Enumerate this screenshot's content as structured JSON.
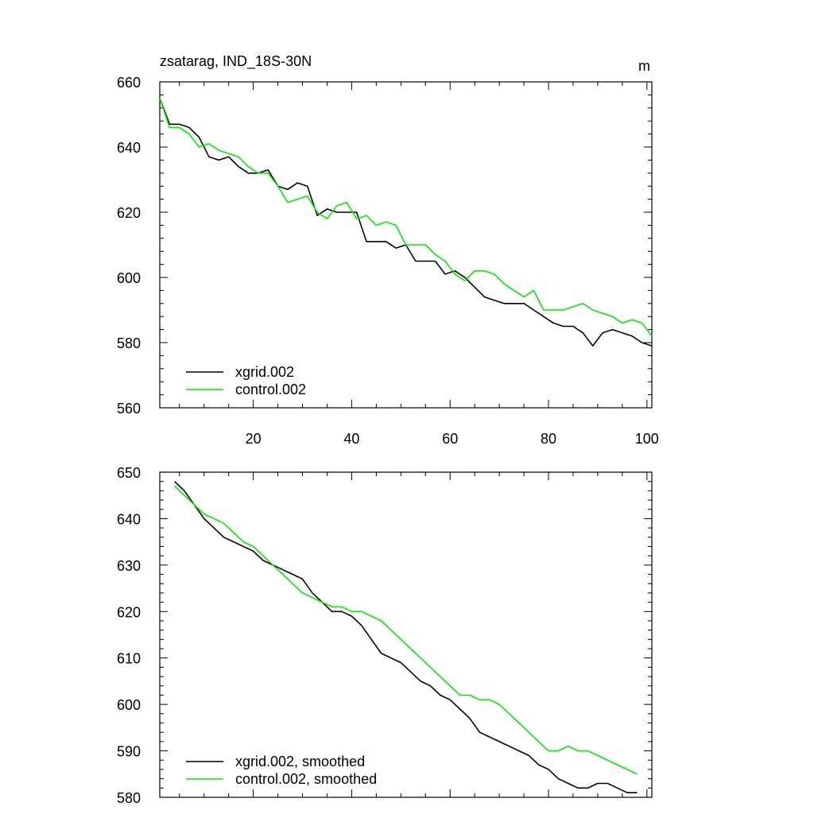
{
  "colors": {
    "xgrid": "#000000",
    "control": "#00ee00",
    "axis": "#000000",
    "background": "#ffffff"
  },
  "chart_data": [
    {
      "type": "line",
      "title": "zsatarag, IND_18S-30N",
      "units": "m",
      "xlim": [
        1,
        101
      ],
      "ylim": [
        560,
        660
      ],
      "x_ticks": [
        20,
        40,
        60,
        80,
        100
      ],
      "y_ticks": [
        560,
        580,
        600,
        620,
        640,
        660
      ],
      "x_tick_labels": [
        "20",
        "40",
        "60",
        "80",
        "100"
      ],
      "y_tick_labels": [
        "560",
        "580",
        "600",
        "620",
        "640",
        "660"
      ],
      "legend_position": "bottom-left",
      "series": [
        {
          "name": "xgrid.002",
          "color": "#000000",
          "x": [
            1,
            3,
            5,
            7,
            9,
            11,
            13,
            15,
            17,
            19,
            21,
            23,
            25,
            27,
            29,
            31,
            33,
            35,
            37,
            39,
            41,
            43,
            45,
            47,
            49,
            51,
            53,
            55,
            57,
            59,
            61,
            63,
            65,
            67,
            69,
            71,
            73,
            75,
            77,
            79,
            81,
            83,
            85,
            87,
            89,
            91,
            93,
            95,
            97,
            99,
            101
          ],
          "values": [
            655,
            647,
            647,
            646,
            643,
            637,
            636,
            637,
            634,
            632,
            632,
            633,
            628,
            627,
            629,
            628,
            619,
            621,
            620,
            620,
            620,
            611,
            611,
            611,
            609,
            610,
            605,
            605,
            605,
            601,
            602,
            600,
            597,
            594,
            593,
            592,
            592,
            592,
            590,
            588,
            586,
            585,
            585,
            583,
            579,
            583,
            584,
            583,
            582,
            580,
            579
          ]
        },
        {
          "name": "control.002",
          "color": "#00ee00",
          "x": [
            1,
            3,
            5,
            7,
            9,
            11,
            13,
            15,
            17,
            19,
            21,
            23,
            25,
            27,
            29,
            31,
            33,
            35,
            37,
            39,
            41,
            43,
            45,
            47,
            49,
            51,
            53,
            55,
            57,
            59,
            61,
            63,
            65,
            67,
            69,
            71,
            73,
            75,
            77,
            79,
            81,
            83,
            85,
            87,
            89,
            91,
            93,
            95,
            97,
            99,
            101
          ],
          "values": [
            655,
            646,
            646,
            644,
            640,
            641,
            639,
            638,
            637,
            634,
            632,
            632,
            628,
            623,
            624,
            625,
            620,
            618,
            622,
            623,
            618,
            619,
            616,
            617,
            616,
            610,
            610,
            610,
            607,
            605,
            601,
            599,
            602,
            602,
            601,
            598,
            596,
            594,
            596,
            590,
            590,
            590,
            591,
            592,
            590,
            589,
            588,
            586,
            587,
            586,
            582
          ]
        }
      ]
    },
    {
      "type": "line",
      "title": "",
      "xlim": [
        1,
        101
      ],
      "ylim": [
        580,
        650
      ],
      "x_ticks": [
        20,
        40,
        60,
        80,
        100
      ],
      "y_ticks": [
        580,
        590,
        600,
        610,
        620,
        630,
        640,
        650
      ],
      "y_tick_labels": [
        "580",
        "590",
        "600",
        "610",
        "620",
        "630",
        "640",
        "650"
      ],
      "legend_position": "bottom-left",
      "series": [
        {
          "name": "xgrid.002, smoothed",
          "color": "#000000",
          "x": [
            4,
            6,
            8,
            10,
            12,
            14,
            16,
            18,
            20,
            22,
            24,
            26,
            28,
            30,
            32,
            34,
            36,
            38,
            40,
            42,
            44,
            46,
            48,
            50,
            52,
            54,
            56,
            58,
            60,
            62,
            64,
            66,
            68,
            70,
            72,
            74,
            76,
            78,
            80,
            82,
            84,
            86,
            88,
            90,
            92,
            94,
            96,
            98
          ],
          "values": [
            648,
            646,
            643,
            640,
            638,
            636,
            635,
            634,
            633,
            631,
            630,
            629,
            628,
            627,
            624,
            622,
            620,
            620,
            619,
            617,
            614,
            611,
            610,
            609,
            607,
            605,
            604,
            602,
            601,
            599,
            597,
            594,
            593,
            592,
            591,
            590,
            589,
            587,
            586,
            584,
            583,
            582,
            582,
            583,
            583,
            582,
            581,
            581
          ]
        },
        {
          "name": "control.002, smoothed",
          "color": "#00ee00",
          "x": [
            4,
            6,
            8,
            10,
            12,
            14,
            16,
            18,
            20,
            22,
            24,
            26,
            28,
            30,
            32,
            34,
            36,
            38,
            40,
            42,
            44,
            46,
            48,
            50,
            52,
            54,
            56,
            58,
            60,
            62,
            64,
            66,
            68,
            70,
            72,
            74,
            76,
            78,
            80,
            82,
            84,
            86,
            88,
            90,
            92,
            94,
            96,
            98
          ],
          "values": [
            647,
            645,
            643,
            641,
            640,
            639,
            637,
            635,
            634,
            632,
            630,
            628,
            626,
            624,
            623,
            622,
            621,
            621,
            620,
            620,
            619,
            618,
            616,
            614,
            612,
            610,
            608,
            606,
            604,
            602,
            602,
            601,
            601,
            600,
            598,
            596,
            594,
            592,
            590,
            590,
            591,
            590,
            590,
            589,
            588,
            587,
            586,
            585
          ]
        }
      ]
    }
  ]
}
